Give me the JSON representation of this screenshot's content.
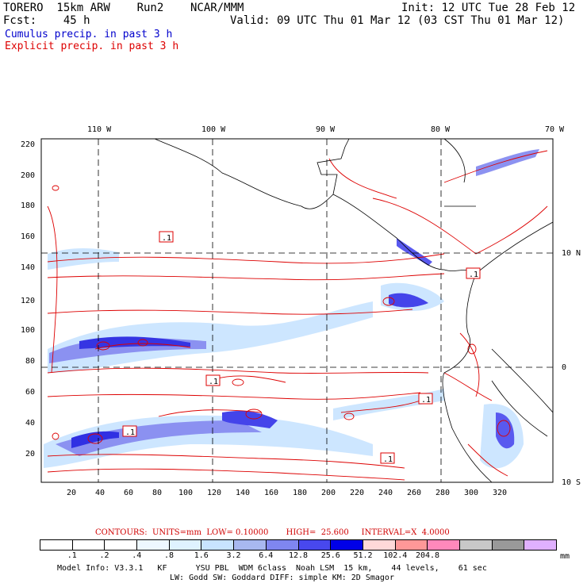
{
  "header": {
    "line1_left": "TORERO  15km ARW    Run2    NCAR/MMM",
    "line1_right": "Init: 12 UTC Tue 28 Feb 12",
    "line2_left": "Fcst:    45 h",
    "line2_right": "Valid: 09 UTC Thu 01 Mar 12 (03 CST Thu 01 Mar 12)"
  },
  "legend": {
    "cumulus": "Cumulus precip. in past 3 h",
    "explicit": "Explicit precip. in past 3 h",
    "cumulus_color": "#0000cc",
    "explicit_color": "#dd0000"
  },
  "map": {
    "lon_labels": [
      "110 W",
      "100 W",
      "90 W",
      "80 W",
      "70 W"
    ],
    "lat_labels": [
      "10 N",
      "0",
      "10 S"
    ],
    "y_ticks": [
      "220",
      "200",
      "180",
      "160",
      "140",
      "120",
      "100",
      "80",
      "60",
      "40",
      "20"
    ],
    "x_ticks": [
      "20",
      "40",
      "60",
      "80",
      "100",
      "120",
      "140",
      "160",
      "180",
      "200",
      "220",
      "240",
      "260",
      "280",
      "300",
      "320"
    ],
    "boxed_labels": [
      ".1",
      ".1",
      ".1",
      ".1",
      ".1",
      ".1"
    ]
  },
  "contours_note": "CONTOURS:  UNITS=mm  LOW= 0.10000       HIGH=  25.600     INTERVAL=X  4.0000",
  "colorbar": {
    "colors": [
      "#ffffff",
      "#ffffff",
      "#ffffff",
      "#eef8ff",
      "#dff2ff",
      "#c8e4ff",
      "#a8b8f0",
      "#7f86f0",
      "#4848ee",
      "#0000e8",
      "#ffd8d8",
      "#ff9898",
      "#ff88bb",
      "#c8c8c8",
      "#999999",
      "#e0b0ff"
    ],
    "labels": [
      ".1",
      ".2",
      ".4",
      ".8",
      "1.6",
      "3.2",
      "6.4",
      "12.8",
      "25.6",
      "51.2",
      "102.4",
      "204.8"
    ],
    "unit": "mm"
  },
  "footer": {
    "line1": "Model Info: V3.3.1   KF      YSU PBL  WDM 6class  Noah LSM  15 km,    44 levels,    61 sec",
    "line2": "LW: Godd SW: Goddard DIFF: simple KM: 2D Smagor"
  }
}
